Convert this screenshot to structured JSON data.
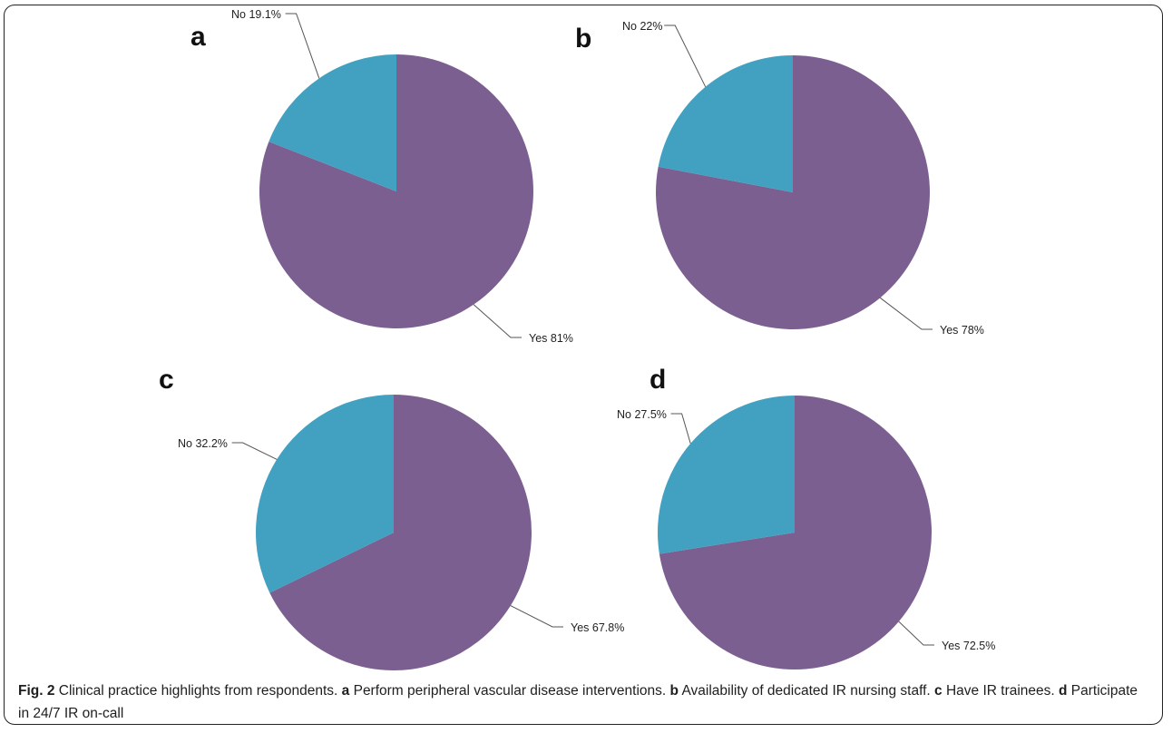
{
  "colors": {
    "yes": "#7b5f91",
    "no": "#42a1c1",
    "leader": "#555555"
  },
  "chart_data": [
    {
      "type": "pie",
      "panel": "a",
      "slices": [
        {
          "label": "Yes",
          "value": 81,
          "text": "Yes 81%"
        },
        {
          "label": "No",
          "value": 19.1,
          "text": "No 19.1%"
        }
      ]
    },
    {
      "type": "pie",
      "panel": "b",
      "slices": [
        {
          "label": "Yes",
          "value": 78,
          "text": "Yes 78%"
        },
        {
          "label": "No",
          "value": 22,
          "text": "No 22%"
        }
      ]
    },
    {
      "type": "pie",
      "panel": "c",
      "slices": [
        {
          "label": "Yes",
          "value": 67.8,
          "text": "Yes 67.8%"
        },
        {
          "label": "No",
          "value": 32.2,
          "text": "No 32.2%"
        }
      ]
    },
    {
      "type": "pie",
      "panel": "d",
      "slices": [
        {
          "label": "Yes",
          "value": 72.5,
          "text": "Yes 72.5%"
        },
        {
          "label": "No",
          "value": 27.5,
          "text": "No 27.5%"
        }
      ]
    }
  ],
  "caption": {
    "fig": "Fig. 2",
    "intro": " Clinical practice highlights from respondents. ",
    "a_letter": "a",
    "a_text": " Perform peripheral vascular disease interventions. ",
    "b_letter": "b",
    "b_text": " Availability of dedicated IR nursing staff. ",
    "c_letter": "c",
    "c_text": " Have IR trainees. ",
    "d_letter": "d",
    "d_text": " Participate in 24/7 IR on-call"
  }
}
